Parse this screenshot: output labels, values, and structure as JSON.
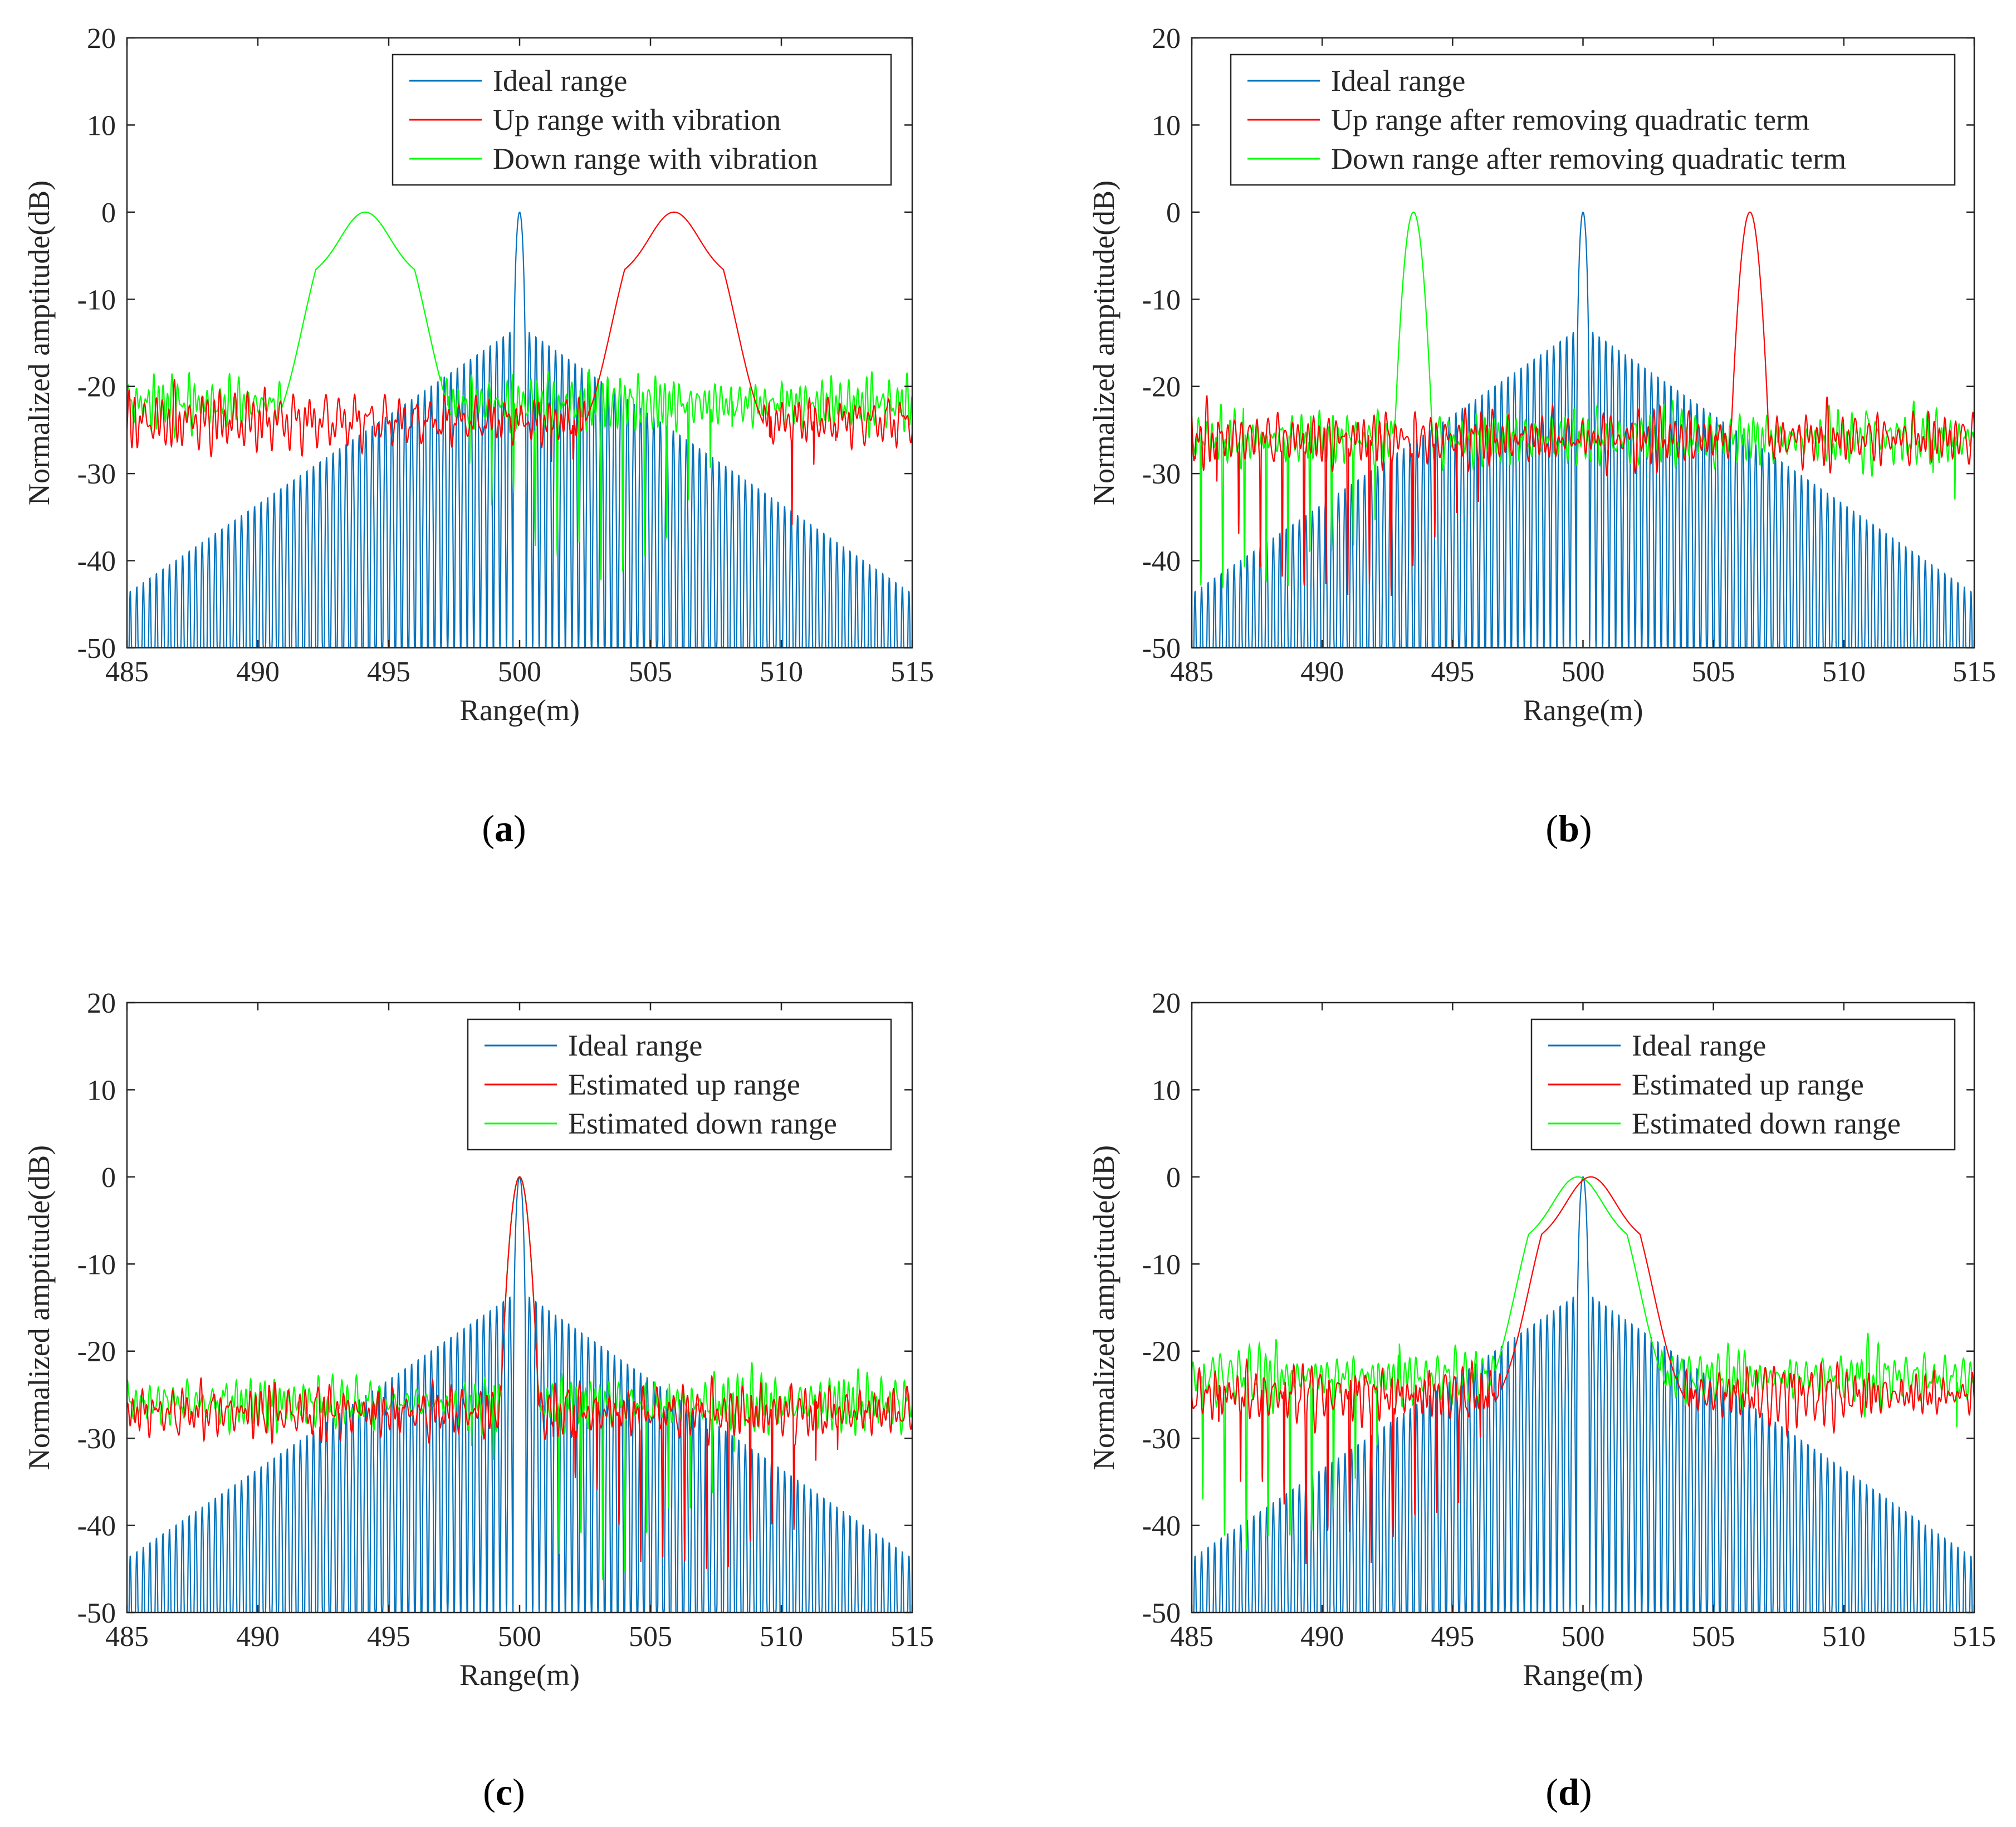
{
  "figure": {
    "panels": [
      {
        "caption_letter": "a",
        "legend": [
          "Ideal range",
          "Up range with vibration",
          "Down range with vibration"
        ]
      },
      {
        "caption_letter": "b",
        "legend": [
          "Ideal range",
          "Up range after removing quadratic term",
          "Down range after removing quadratic term"
        ]
      },
      {
        "caption_letter": "c",
        "legend": [
          "Ideal range",
          "Estimated up range",
          "Estimated down range"
        ]
      },
      {
        "caption_letter": "d",
        "legend": [
          "Ideal range",
          "Estimated up range",
          "Estimated down range"
        ]
      }
    ]
  },
  "chart_data": [
    {
      "type": "line",
      "panel": "a",
      "xlabel": "Range(m)",
      "ylabel": "Normalized amptitude(dB)",
      "xlim": [
        485,
        515
      ],
      "ylim": [
        -50,
        20
      ],
      "xticks": [
        485,
        490,
        495,
        500,
        505,
        510,
        515
      ],
      "yticks": [
        20,
        10,
        0,
        -10,
        -20,
        -30,
        -40,
        -50
      ],
      "series": [
        {
          "name": "Ideal range",
          "color": "#0072BD",
          "kind": "sinc",
          "peak_x": 500,
          "peak_db": 0,
          "floor_db": -44
        },
        {
          "name": "Up range with vibration",
          "color": "#FF0000",
          "kind": "spread",
          "peak_x": 505.9,
          "peak_db": 0,
          "noise_db": -24
        },
        {
          "name": "Down range with vibration",
          "color": "#00FF00",
          "kind": "spread",
          "peak_x": 494.1,
          "peak_db": 0,
          "noise_db": -22
        }
      ]
    },
    {
      "type": "line",
      "panel": "b",
      "xlabel": "Range(m)",
      "ylabel": "Normalized amptitude(dB)",
      "xlim": [
        485,
        515
      ],
      "ylim": [
        -50,
        20
      ],
      "xticks": [
        485,
        490,
        495,
        500,
        505,
        510,
        515
      ],
      "yticks": [
        20,
        10,
        0,
        -10,
        -20,
        -30,
        -40,
        -50
      ],
      "series": [
        {
          "name": "Ideal range",
          "color": "#0072BD",
          "kind": "sinc",
          "peak_x": 500,
          "peak_db": 0,
          "floor_db": -44
        },
        {
          "name": "Up range after removing quadratic term",
          "color": "#FF0000",
          "kind": "narrow",
          "peak_x": 506.4,
          "peak_db": 0,
          "noise_db": -26
        },
        {
          "name": "Down range after removing quadratic term",
          "color": "#00FF00",
          "kind": "narrow",
          "peak_x": 493.5,
          "peak_db": 0,
          "noise_db": -26
        }
      ]
    },
    {
      "type": "line",
      "panel": "c",
      "xlabel": "Range(m)",
      "ylabel": "Normalized amptitude(dB)",
      "xlim": [
        485,
        515
      ],
      "ylim": [
        -50,
        20
      ],
      "xticks": [
        485,
        490,
        495,
        500,
        505,
        510,
        515
      ],
      "yticks": [
        20,
        10,
        0,
        -10,
        -20,
        -30,
        -40,
        -50
      ],
      "series": [
        {
          "name": "Ideal range",
          "color": "#0072BD",
          "kind": "sinc",
          "peak_x": 500,
          "peak_db": 0,
          "floor_db": -44
        },
        {
          "name": "Estimated up range",
          "color": "#FF0000",
          "kind": "narrow",
          "peak_x": 500,
          "peak_db": 0,
          "noise_db": -27
        },
        {
          "name": "Estimated down range",
          "color": "#00FF00",
          "kind": "narrow",
          "peak_x": 500,
          "peak_db": 0,
          "noise_db": -26
        }
      ]
    },
    {
      "type": "line",
      "panel": "d",
      "xlabel": "Range(m)",
      "ylabel": "Normalized amptitude(dB)",
      "xlim": [
        485,
        515
      ],
      "ylim": [
        -50,
        20
      ],
      "xticks": [
        485,
        490,
        495,
        500,
        505,
        510,
        515
      ],
      "yticks": [
        20,
        10,
        0,
        -10,
        -20,
        -30,
        -40,
        -50
      ],
      "series": [
        {
          "name": "Ideal range",
          "color": "#0072BD",
          "kind": "sinc",
          "peak_x": 500,
          "peak_db": 0,
          "floor_db": -44
        },
        {
          "name": "Estimated up range",
          "color": "#FF0000",
          "kind": "spread",
          "peak_x": 500.3,
          "peak_db": 0,
          "noise_db": -25
        },
        {
          "name": "Estimated down range",
          "color": "#00FF00",
          "kind": "spread",
          "peak_x": 499.8,
          "peak_db": 0,
          "noise_db": -23
        }
      ]
    }
  ]
}
